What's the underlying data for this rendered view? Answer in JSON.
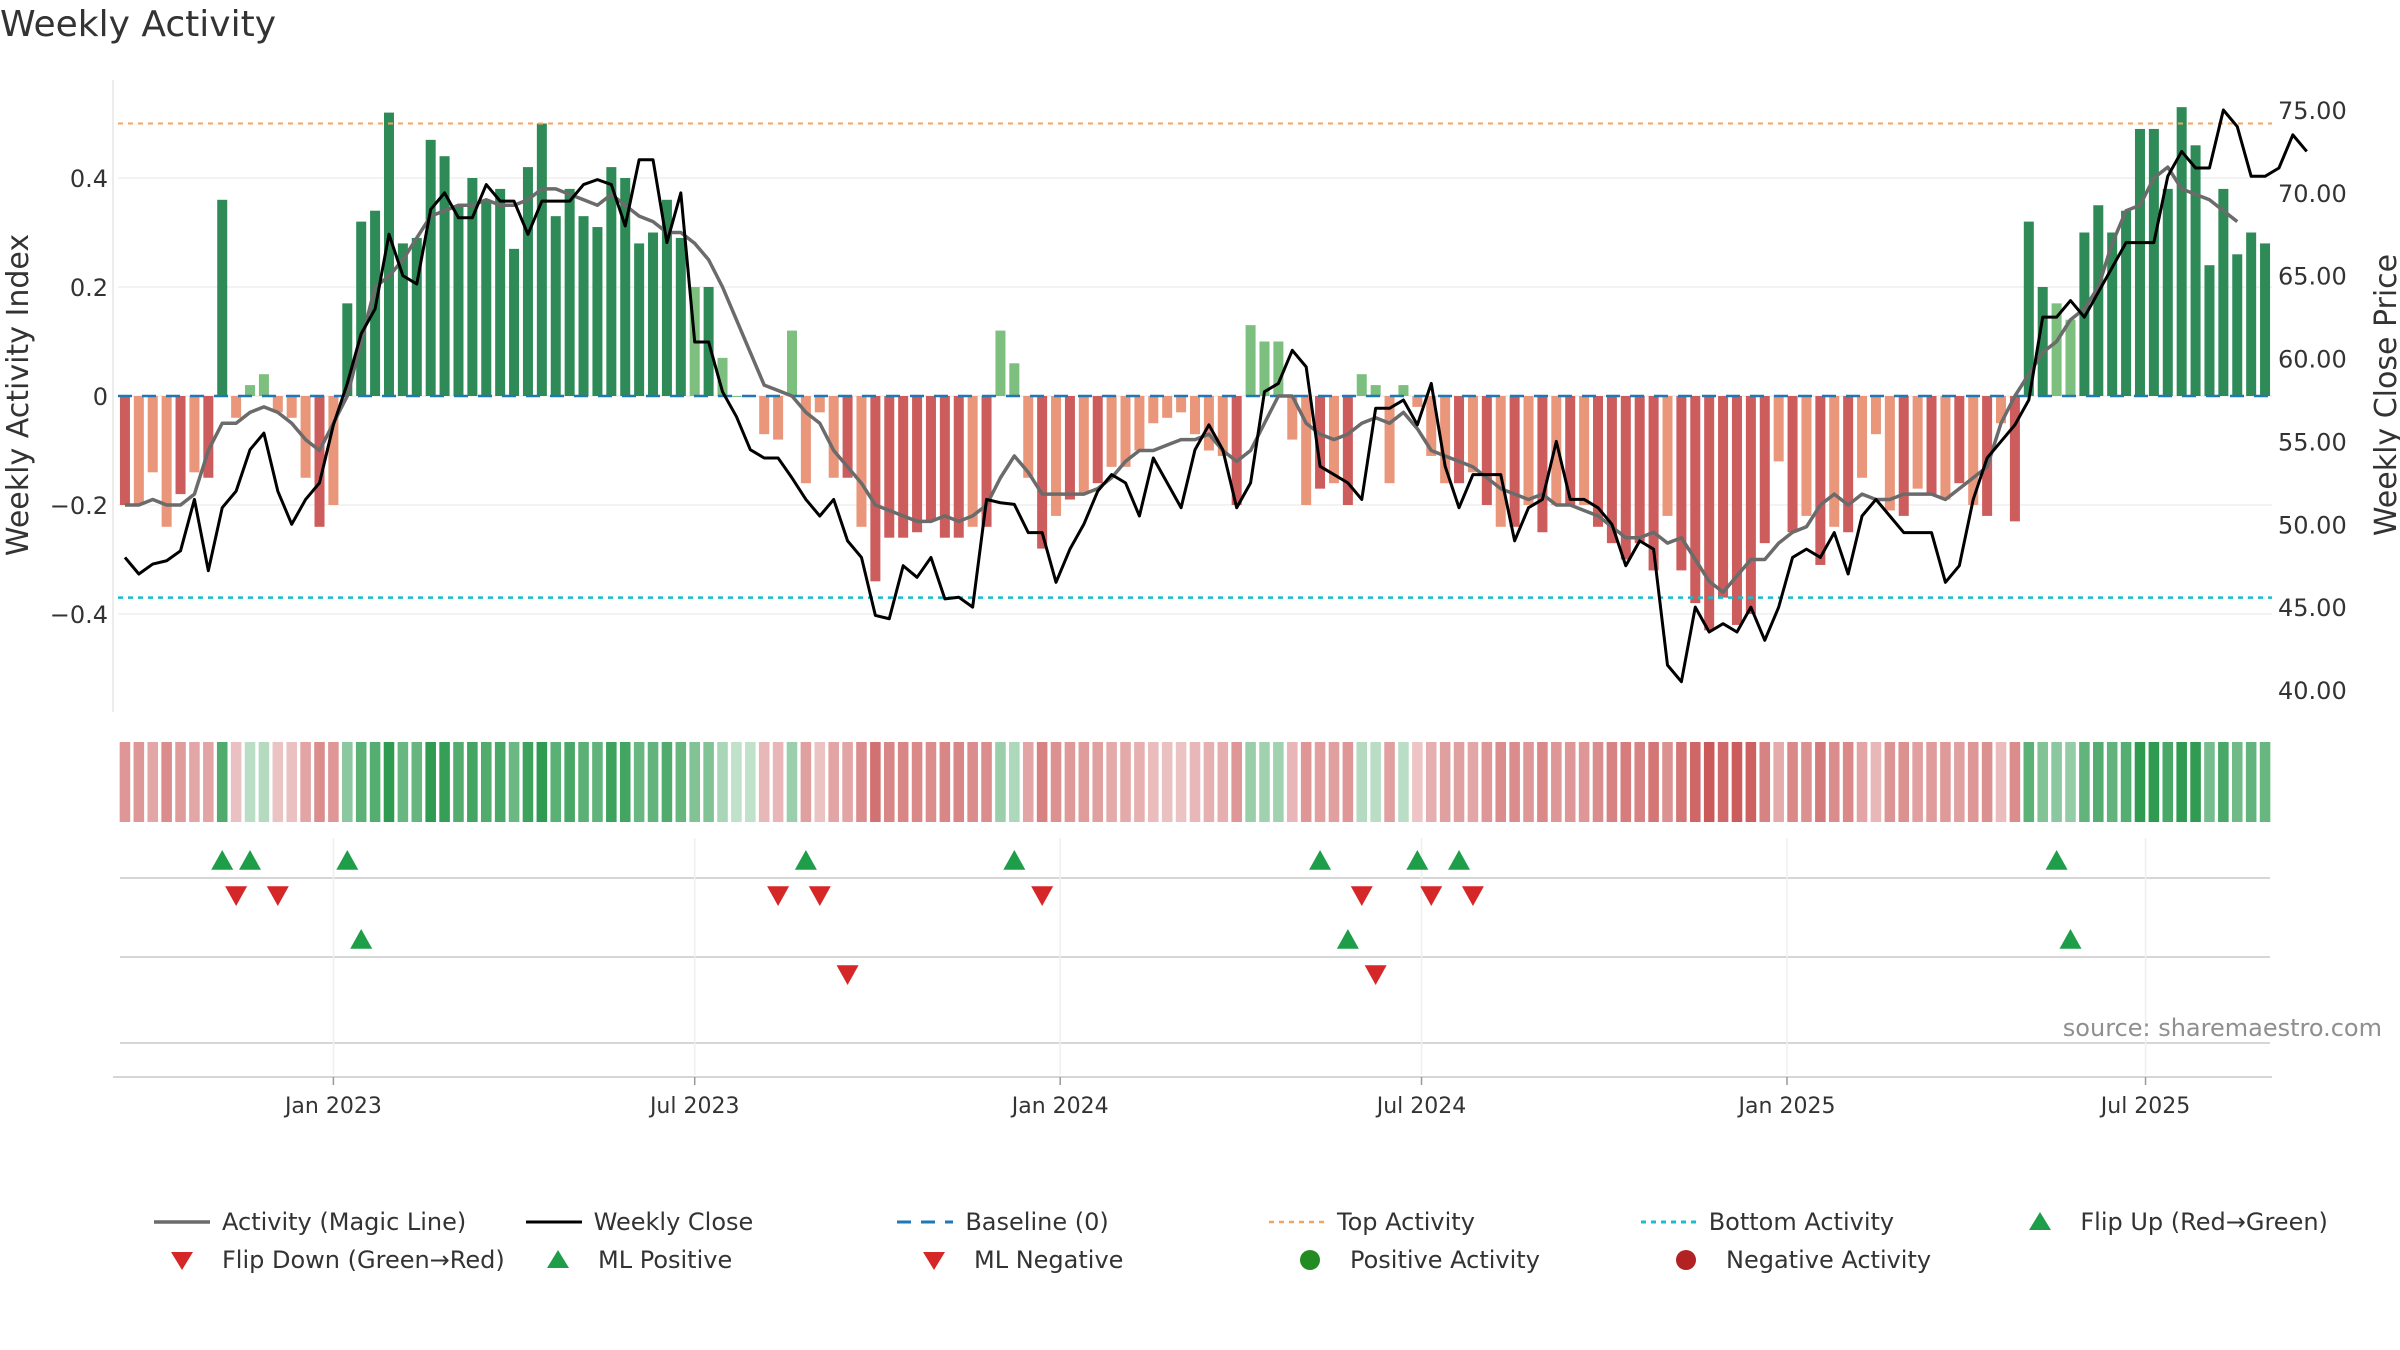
{
  "title": "Weekly Activity",
  "source": "source: sharemaestro.com",
  "colors": {
    "bar_pos_strong": "#2e8b57",
    "bar_pos_light": "#7cbf7e",
    "bar_neg_strong": "#cd5c5c",
    "bar_neg_light": "#e9967a",
    "magic_line": "#6b6b6b",
    "close_line": "#000000",
    "baseline": "#1f77b4",
    "top_line": "#f4a460",
    "bottom_line": "#17becf",
    "marker_up": "#1e9e49",
    "marker_down": "#d62728",
    "dot_pos": "#228b22",
    "dot_neg": "#b22222"
  },
  "chart_data": {
    "type": "bar",
    "title": "Weekly Activity",
    "xlabel": "",
    "ylabel": "Weekly Activity Index",
    "y2label": "Weekly Close Price",
    "ylim": [
      -0.58,
      0.58
    ],
    "y2lim": [
      38.5,
      77.5
    ],
    "yticks": [
      -0.4,
      -0.2,
      0,
      0.2,
      0.4
    ],
    "ytick_labels": [
      "−0.4",
      "−0.2",
      "0",
      "0.2",
      "0.4"
    ],
    "y2ticks": [
      40,
      45,
      50,
      55,
      60,
      65,
      70,
      75
    ],
    "y2tick_labels": [
      "40.00",
      "45.00",
      "50.00",
      "55.00",
      "60.00",
      "65.00",
      "70.00",
      "75.00"
    ],
    "xticks": [
      {
        "label": "Jan 2023",
        "week": 15
      },
      {
        "label": "Jul 2023",
        "week": 41
      },
      {
        "label": "Jan 2024",
        "week": 67.3
      },
      {
        "label": "Jul 2024",
        "week": 93.3
      },
      {
        "label": "Jan 2025",
        "week": 119.6
      },
      {
        "label": "Jul 2025",
        "week": 145.4
      }
    ],
    "top_activity": 0.5,
    "bottom_activity": -0.37,
    "activity_index": [
      -0.2,
      -0.2,
      -0.14,
      -0.24,
      -0.18,
      -0.14,
      -0.15,
      0.36,
      -0.04,
      0.02,
      0.04,
      -0.03,
      -0.04,
      -0.15,
      -0.24,
      -0.2,
      0.17,
      0.32,
      0.34,
      0.52,
      0.28,
      0.29,
      0.47,
      0.44,
      0.35,
      0.4,
      0.36,
      0.38,
      0.27,
      0.42,
      0.5,
      0.33,
      0.38,
      0.33,
      0.31,
      0.42,
      0.4,
      0.28,
      0.3,
      0.36,
      0.29,
      0.2,
      0.2,
      0.07,
      0,
      0,
      -0.07,
      -0.08,
      0.12,
      -0.16,
      -0.03,
      -0.15,
      -0.15,
      -0.24,
      -0.34,
      -0.26,
      -0.26,
      -0.25,
      -0.23,
      -0.26,
      -0.26,
      -0.24,
      -0.24,
      0.12,
      0.06,
      -0.15,
      -0.28,
      -0.22,
      -0.19,
      -0.18,
      -0.16,
      -0.13,
      -0.13,
      -0.1,
      -0.05,
      -0.04,
      -0.03,
      -0.07,
      -0.1,
      -0.11,
      -0.2,
      0.13,
      0.1,
      0.1,
      -0.08,
      -0.2,
      -0.17,
      -0.16,
      -0.2,
      0.04,
      0.02,
      -0.16,
      0.02,
      -0.02,
      -0.11,
      -0.16,
      -0.16,
      -0.14,
      -0.2,
      -0.24,
      -0.24,
      -0.2,
      -0.25,
      -0.2,
      -0.2,
      -0.2,
      -0.24,
      -0.27,
      -0.3,
      -0.27,
      -0.32,
      -0.22,
      -0.32,
      -0.38,
      -0.43,
      -0.37,
      -0.42,
      -0.4,
      -0.27,
      -0.12,
      -0.25,
      -0.22,
      -0.31,
      -0.24,
      -0.25,
      -0.15,
      -0.07,
      -0.21,
      -0.22,
      -0.17,
      -0.18,
      -0.19,
      -0.16,
      -0.2,
      -0.22,
      -0.05,
      -0.23,
      0.32,
      0.2,
      0.17,
      0.14,
      0.3,
      0.35,
      0.3,
      0.34,
      0.49,
      0.49,
      0.38,
      0.53,
      0.46,
      0.24,
      0.38,
      0.26,
      0.3,
      0.28
    ],
    "magic_line": [
      -0.2,
      -0.2,
      -0.19,
      -0.2,
      -0.2,
      -0.18,
      -0.1,
      -0.05,
      -0.05,
      -0.03,
      -0.02,
      -0.03,
      -0.05,
      -0.08,
      -0.1,
      -0.05,
      0.0,
      0.1,
      0.2,
      0.22,
      0.25,
      0.29,
      0.33,
      0.34,
      0.35,
      0.35,
      0.36,
      0.35,
      0.35,
      0.36,
      0.38,
      0.38,
      0.37,
      0.36,
      0.35,
      0.37,
      0.35,
      0.33,
      0.32,
      0.3,
      0.3,
      0.28,
      0.25,
      0.2,
      0.14,
      0.08,
      0.02,
      0.01,
      0.0,
      -0.03,
      -0.05,
      -0.1,
      -0.13,
      -0.16,
      -0.2,
      -0.21,
      -0.22,
      -0.23,
      -0.23,
      -0.22,
      -0.23,
      -0.22,
      -0.2,
      -0.15,
      -0.11,
      -0.14,
      -0.18,
      -0.18,
      -0.18,
      -0.18,
      -0.17,
      -0.15,
      -0.12,
      -0.1,
      -0.1,
      -0.09,
      -0.08,
      -0.08,
      -0.07,
      -0.1,
      -0.12,
      -0.1,
      -0.05,
      0.0,
      0.0,
      -0.05,
      -0.07,
      -0.08,
      -0.07,
      -0.05,
      -0.04,
      -0.05,
      -0.03,
      -0.06,
      -0.1,
      -0.11,
      -0.12,
      -0.13,
      -0.15,
      -0.17,
      -0.18,
      -0.19,
      -0.18,
      -0.2,
      -0.2,
      -0.21,
      -0.22,
      -0.24,
      -0.26,
      -0.26,
      -0.25,
      -0.27,
      -0.26,
      -0.3,
      -0.34,
      -0.36,
      -0.33,
      -0.3,
      -0.3,
      -0.27,
      -0.25,
      -0.24,
      -0.2,
      -0.18,
      -0.2,
      -0.18,
      -0.19,
      -0.19,
      -0.18,
      -0.18,
      -0.18,
      -0.19,
      -0.17,
      -0.15,
      -0.13,
      -0.05,
      0.0,
      0.04,
      0.08,
      0.1,
      0.14,
      0.16,
      0.2,
      0.28,
      0.34,
      0.35,
      0.4,
      0.42,
      0.38,
      0.37,
      0.36,
      0.34,
      0.32
    ],
    "weekly_close": [
      48,
      47,
      47.6,
      47.8,
      48.4,
      51.5,
      47.2,
      51,
      52,
      54.5,
      55.5,
      52,
      50,
      51.5,
      52.5,
      56,
      58.5,
      61.5,
      63,
      67.5,
      65,
      64.5,
      69,
      70,
      68.5,
      68.5,
      70.5,
      69.5,
      69.5,
      67.5,
      69.5,
      69.5,
      69.5,
      70.5,
      70.8,
      70.5,
      68,
      72,
      72,
      67,
      70,
      61,
      61,
      58,
      56.5,
      54.5,
      54,
      54,
      52.8,
      51.5,
      50.5,
      51.5,
      49,
      48,
      44.5,
      44.3,
      47.5,
      46.8,
      48,
      45.5,
      45.6,
      45,
      51.5,
      51.3,
      51.2,
      49.5,
      49.5,
      46.5,
      48.5,
      50,
      52,
      53,
      52.5,
      50.5,
      54,
      52.5,
      51,
      54.5,
      56,
      54.5,
      51,
      52.5,
      58,
      58.5,
      60.5,
      59.5,
      53.5,
      53,
      52.5,
      51.5,
      57,
      57,
      57.5,
      56,
      58.5,
      53.5,
      51,
      53,
      53,
      53,
      49,
      51,
      51.5,
      55,
      51.5,
      51.5,
      51,
      50,
      47.5,
      49,
      48.5,
      41.5,
      40.5,
      45,
      43.5,
      44,
      43.5,
      45,
      43,
      45,
      48,
      48.5,
      48,
      49.5,
      47,
      50.5,
      51.5,
      50.5,
      49.5,
      49.5,
      49.5,
      46.5,
      47.5,
      51.5,
      54,
      55,
      56,
      57.5,
      62.5,
      62.5,
      63.5,
      62.5,
      64,
      65.5,
      67,
      67,
      67,
      71,
      72.5,
      71.5,
      71.5,
      75,
      74,
      71,
      71,
      71.5,
      73.5,
      72.5
    ],
    "flip_up_weeks": [
      7,
      9,
      16,
      49,
      64,
      86,
      93,
      96,
      139
    ],
    "flip_down_weeks": [
      8,
      11,
      47,
      50,
      66,
      89,
      94,
      97
    ],
    "ml_positive_weeks": [
      17,
      88,
      140
    ],
    "ml_negative_weeks": [
      52,
      90
    ]
  },
  "legend": [
    {
      "label": "Activity (Magic Line)",
      "symbol": "line-gray"
    },
    {
      "label": "Weekly Close",
      "symbol": "line-black"
    },
    {
      "label": "Baseline (0)",
      "symbol": "line-dashed-blue"
    },
    {
      "label": "Top Activity",
      "symbol": "line-dotted-orange"
    },
    {
      "label": "Bottom Activity",
      "symbol": "line-dotted-cyan"
    },
    {
      "label": "Flip Up (Red→Green)",
      "symbol": "triangle-up-green"
    },
    {
      "label": "Flip Down (Green→Red)",
      "symbol": "triangle-down-red"
    },
    {
      "label": "ML Positive",
      "symbol": "triangle-up-green"
    },
    {
      "label": "ML Negative",
      "symbol": "triangle-down-red"
    },
    {
      "label": "Positive Activity",
      "symbol": "dot-green"
    },
    {
      "label": "Negative Activity",
      "symbol": "dot-red"
    }
  ]
}
